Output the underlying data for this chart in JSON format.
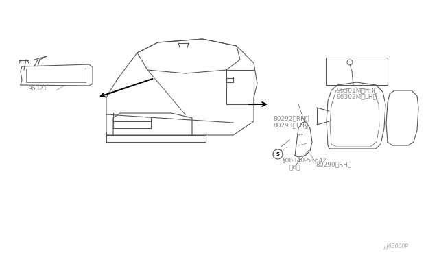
{
  "background_color": "#ffffff",
  "diagram_color": "#000000",
  "line_color": "#555555",
  "label_color": "#888888",
  "fig_width": 6.4,
  "fig_height": 3.72,
  "labels": {
    "part_96321": "96321",
    "part_80290": "80290（RH）",
    "part_08340": "§08340-51642\n（6）",
    "part_80292": "80292（RH）\n80293（LH）",
    "part_96301": "96301M（RH）\n96302M（LH）",
    "watermark": "J.J63000P"
  }
}
